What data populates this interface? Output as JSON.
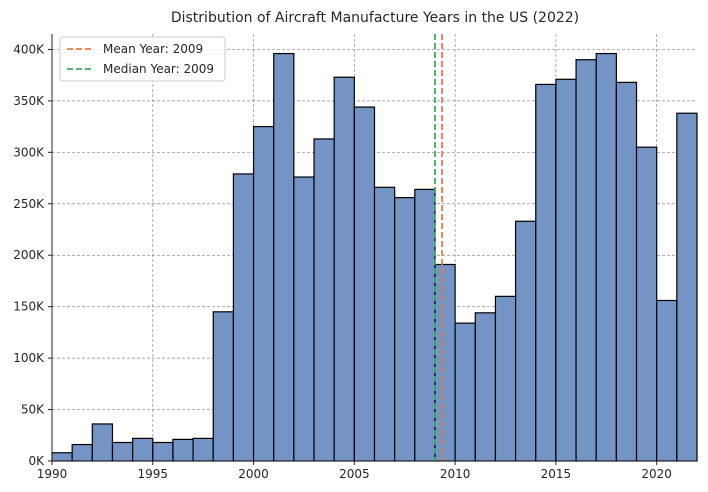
{
  "chart_data": {
    "type": "bar",
    "title": "Distribution of Aircraft Manufacture Years in the US (2022)",
    "xlabel": "",
    "ylabel": "",
    "bin_edges": [
      1990,
      1991,
      1992,
      1993,
      1994,
      1995,
      1996,
      1997,
      1998,
      1999,
      2000,
      2001,
      2002,
      2003,
      2004,
      2005,
      2006,
      2007,
      2008,
      2009,
      2010,
      2011,
      2012,
      2013,
      2014,
      2015,
      2016,
      2017,
      2018,
      2019,
      2020,
      2021,
      2022
    ],
    "values": [
      8000,
      16000,
      36000,
      18000,
      22000,
      18000,
      21000,
      22000,
      145000,
      279000,
      325000,
      396000,
      276000,
      313000,
      373000,
      344000,
      266000,
      256000,
      264000,
      191000,
      134000,
      144000,
      160000,
      233000,
      366000,
      371000,
      390000,
      396000,
      368000,
      305000,
      156000,
      338000
    ],
    "xlim": [
      1990,
      2022
    ],
    "ylim": [
      0,
      415000
    ],
    "x_ticks": [
      1990,
      1995,
      2000,
      2005,
      2010,
      2015,
      2020
    ],
    "x_tick_labels": [
      "1990",
      "1995",
      "2000",
      "2005",
      "2010",
      "2015",
      "2020"
    ],
    "y_ticks": [
      0,
      50000,
      100000,
      150000,
      200000,
      250000,
      300000,
      350000,
      400000
    ],
    "y_tick_labels": [
      "0K",
      "50K",
      "100K",
      "150K",
      "200K",
      "250K",
      "300K",
      "350K",
      "400K"
    ],
    "grid": true,
    "bar_color": "#7494c5",
    "bar_edge_color": "#000000",
    "reference_lines": [
      {
        "name": "Mean Year: 2009",
        "x": 2009.35,
        "color": "#e97c43",
        "dash": "dashed"
      },
      {
        "name": "Median Year: 2009",
        "x": 2009.0,
        "color": "#3fa95e",
        "dash": "dashed"
      }
    ],
    "legend": {
      "position": "top-left"
    }
  }
}
